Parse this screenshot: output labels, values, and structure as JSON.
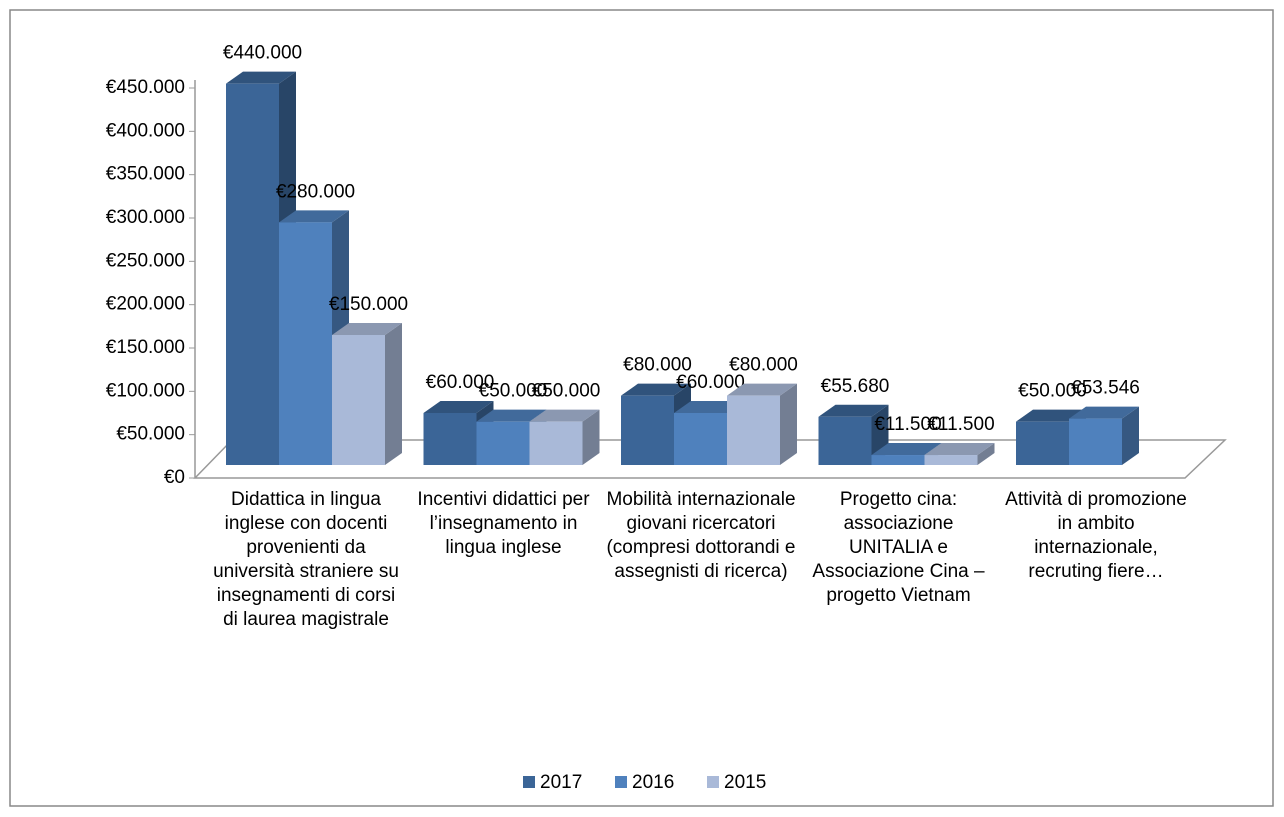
{
  "chart_data": {
    "type": "bar3d",
    "categories": [
      "Didattica in lingua inglese con docenti provenienti da università straniere su insegnamenti di corsi di laurea magistrale",
      "Incentivi didattici per l’insegnamento in lingua inglese",
      "Mobilità internazionale giovani ricercatori (compresi dottorandi e assegnisti di ricerca)",
      "Progetto cina: associazione UNITALIA e Associazione Cina – progetto Vietnam",
      "Attività di promozione in ambito internazionale, recruting fiere…"
    ],
    "series": [
      {
        "name": "2017",
        "color": "#3b6597",
        "values": [
          440000,
          60000,
          80000,
          55680,
          50000
        ],
        "value_labels": [
          "€440.000",
          "€60.000",
          "€80.000",
          "€55.680",
          "€50.000"
        ]
      },
      {
        "name": "2016",
        "color": "#4f81bd",
        "values": [
          280000,
          50000,
          60000,
          11500,
          53546
        ],
        "value_labels": [
          "€280.000",
          "€50.000",
          "€60.000",
          "€11.500",
          "€53.546"
        ]
      },
      {
        "name": "2015",
        "color": "#a9b9d8",
        "values": [
          150000,
          50000,
          80000,
          11500,
          null
        ],
        "value_labels": [
          "€150.000",
          "€50.000",
          "€80.000",
          "€11.500",
          null
        ]
      }
    ],
    "ylim": [
      0,
      450000
    ],
    "yticks": [
      {
        "value": 0,
        "label": "€0"
      },
      {
        "value": 50000,
        "label": "€50.000"
      },
      {
        "value": 100000,
        "label": "€100.000"
      },
      {
        "value": 150000,
        "label": "€150.000"
      },
      {
        "value": 200000,
        "label": "€200.000"
      },
      {
        "value": 250000,
        "label": "€250.000"
      },
      {
        "value": 300000,
        "label": "€300.000"
      },
      {
        "value": 350000,
        "label": "€350.000"
      },
      {
        "value": 400000,
        "label": "€400.000"
      },
      {
        "value": 450000,
        "label": "€450.000"
      }
    ],
    "legend": "bottom"
  }
}
